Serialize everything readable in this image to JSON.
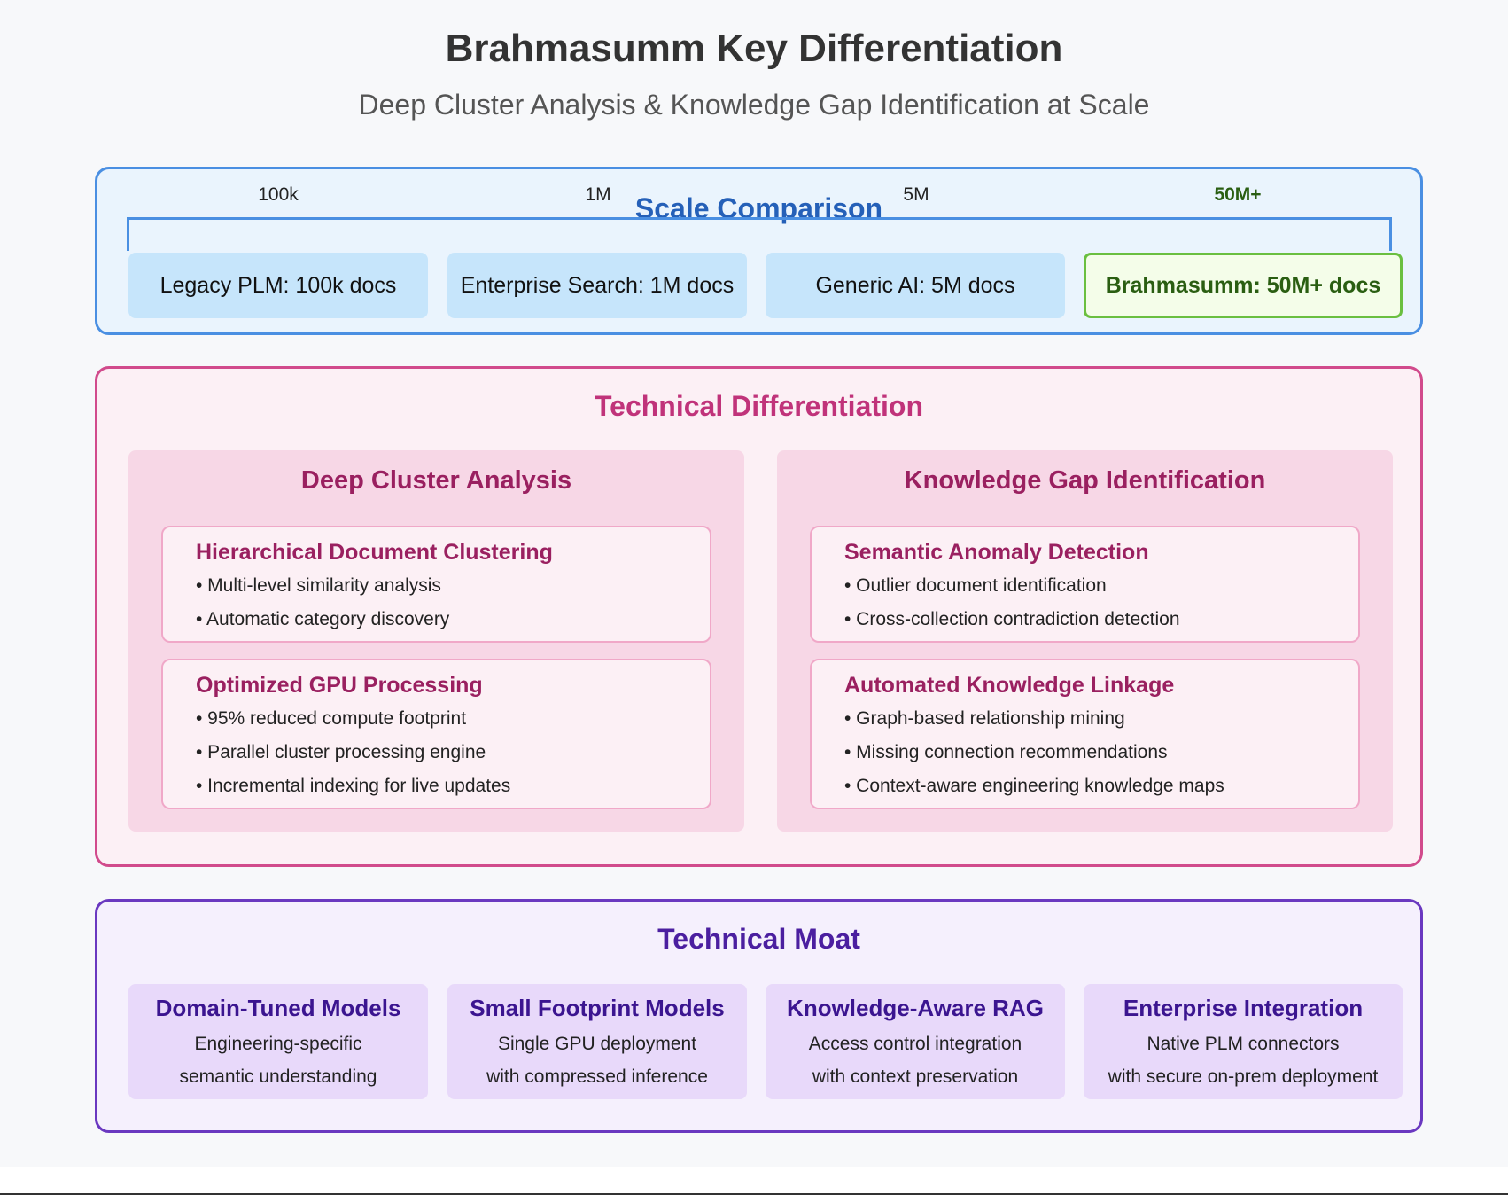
{
  "header": {
    "title": "Brahmasumm Key Differentiation",
    "subtitle": "Deep Cluster Analysis & Knowledge Gap Identification at Scale"
  },
  "scale_comparison": {
    "title": "Scale Comparison",
    "ticks": [
      "100k",
      "1M",
      "5M",
      "50M+"
    ],
    "boxes": [
      "Legacy PLM: 100k docs",
      "Enterprise Search: 1M docs",
      "Generic AI: 5M docs",
      "Brahmasumm: 50M+ docs"
    ]
  },
  "technical_differentiation": {
    "title": "Technical Differentiation",
    "columns": [
      {
        "title": "Deep Cluster Analysis",
        "cards": [
          {
            "title": "Hierarchical Document Clustering",
            "bullets": [
              "• Multi-level similarity analysis",
              "• Automatic category discovery"
            ]
          },
          {
            "title": "Optimized GPU Processing",
            "bullets": [
              "• 95% reduced compute footprint",
              "• Parallel cluster processing engine",
              "• Incremental indexing for live updates"
            ]
          }
        ]
      },
      {
        "title": "Knowledge Gap Identification",
        "cards": [
          {
            "title": "Semantic Anomaly Detection",
            "bullets": [
              "• Outlier document identification",
              "• Cross-collection contradiction detection"
            ]
          },
          {
            "title": "Automated Knowledge Linkage",
            "bullets": [
              "• Graph-based relationship mining",
              "• Missing connection recommendations",
              "• Context-aware engineering knowledge maps"
            ]
          }
        ]
      }
    ]
  },
  "technical_moat": {
    "title": "Technical Moat",
    "items": [
      {
        "title": "Domain-Tuned Models",
        "lines": [
          "Engineering-specific",
          "semantic understanding"
        ]
      },
      {
        "title": "Small Footprint Models",
        "lines": [
          "Single GPU deployment",
          "with compressed inference"
        ]
      },
      {
        "title": "Knowledge-Aware RAG",
        "lines": [
          "Access control integration",
          "with context preservation"
        ]
      },
      {
        "title": "Enterprise Integration",
        "lines": [
          "Native PLM connectors",
          "with secure on-prem deployment"
        ]
      }
    ]
  }
}
